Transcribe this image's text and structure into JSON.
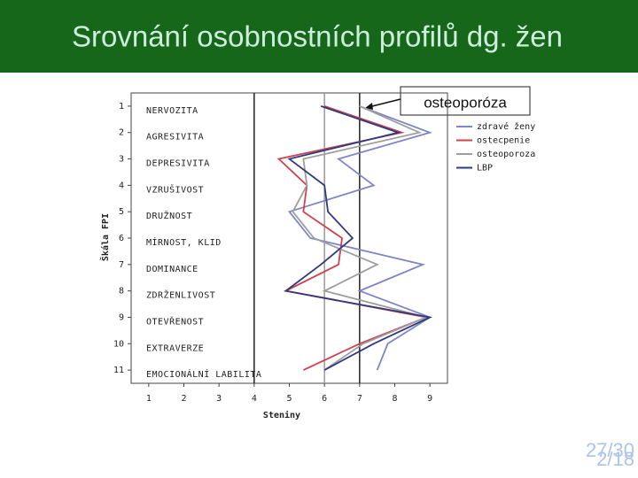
{
  "chart_data": {
    "type": "line",
    "orientation": "vertical",
    "title": "Srovnání osobnostních profilů dg. žen",
    "x_label": "Steniny",
    "y_label": "Škála FPI",
    "annotation": "osteoporóza",
    "page_numbers": [
      "27/30",
      "2/18"
    ],
    "categories": [
      "NERVOZITA",
      "AGRESIVITA",
      "DEPRESIVITA",
      "VZRUŠIVOST",
      "DRUŽNOST",
      "MÍRNOST, KLID",
      "DOMINANCE",
      "ZDRŽENLIVOST",
      "OTEVŘENOST",
      "EXTRAVERZE",
      "EMOCIONÁLNÍ LABILITA"
    ],
    "yticks": [
      1,
      2,
      3,
      4,
      5,
      6,
      7,
      8,
      9,
      10,
      11
    ],
    "ylim": [
      0.5,
      11.5
    ],
    "y_inverted": true,
    "xlim": [
      0.5,
      9.5
    ],
    "xticks": [
      1,
      2,
      3,
      4,
      5,
      6,
      7,
      8,
      9
    ],
    "reference_lines": [
      {
        "value": 4,
        "color": "#222222"
      },
      {
        "value": 6,
        "color": "#999999"
      },
      {
        "value": 7,
        "color": "#222222"
      }
    ],
    "series": [
      {
        "name": "zdravé ženy",
        "color": "#7f86c8",
        "values": [
          7.0,
          9.0,
          6.4,
          7.4,
          5.0,
          5.6,
          8.8,
          7.0,
          9.0,
          7.8,
          7.5
        ]
      },
      {
        "name": "ostecpenie",
        "color": "#d0404f",
        "values": [
          6.0,
          8.2,
          4.7,
          5.5,
          5.4,
          6.5,
          6.4,
          4.9,
          8.9,
          7.0,
          5.4
        ]
      },
      {
        "name": "osteoporoza",
        "color": "#9e9e9e",
        "values": [
          7.0,
          8.7,
          5.4,
          5.5,
          5.1,
          5.7,
          7.5,
          6.0,
          8.9,
          7.1,
          6.0
        ]
      },
      {
        "name": "LBP",
        "color": "#2e3a80",
        "values": [
          5.9,
          8.1,
          5.0,
          6.0,
          6.1,
          6.8,
          5.9,
          4.9,
          9.0,
          7.4,
          6.0
        ]
      }
    ]
  }
}
